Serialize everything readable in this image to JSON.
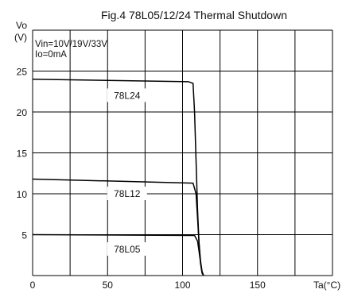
{
  "chart_data": {
    "type": "line",
    "title": "Fig.4 78L05/12/24 Thermal Shutdown",
    "xlabel": "Ta(°C)",
    "ylabel": "Vo (V)",
    "ylabel_parts": [
      "Vo",
      "(V)"
    ],
    "conditions": [
      "Vin=10V/19V/33V",
      "Io=0mA"
    ],
    "xlim": [
      0,
      200
    ],
    "ylim": [
      0,
      30
    ],
    "xticks": [
      0,
      50,
      100,
      150
    ],
    "yticks": [
      5,
      10,
      15,
      20,
      25
    ],
    "x_gridlines": [
      0,
      25,
      50,
      75,
      100,
      125,
      150,
      175,
      200
    ],
    "y_gridlines": [
      0,
      5,
      10,
      15,
      20,
      25,
      30
    ],
    "grid": true,
    "series": [
      {
        "name": "78L24",
        "label_at": {
          "x": 63,
          "y": 22
        },
        "points": [
          [
            0,
            24.0
          ],
          [
            104,
            23.7
          ],
          [
            107,
            23.5
          ],
          [
            108,
            20
          ],
          [
            109,
            14
          ],
          [
            110,
            8
          ],
          [
            111,
            4
          ],
          [
            112,
            1.5
          ],
          [
            113,
            0.3
          ],
          [
            114,
            0
          ]
        ]
      },
      {
        "name": "78L12",
        "label_at": {
          "x": 63,
          "y": 10
        },
        "points": [
          [
            0,
            11.8
          ],
          [
            107,
            11.3
          ],
          [
            109,
            10
          ],
          [
            110,
            7
          ],
          [
            111,
            4
          ],
          [
            112,
            1.8
          ],
          [
            113,
            0.5
          ],
          [
            114,
            0
          ]
        ]
      },
      {
        "name": "78L05",
        "label_at": {
          "x": 63,
          "y": 3.2
        },
        "points": [
          [
            0,
            5.0
          ],
          [
            108,
            4.9
          ],
          [
            110,
            4.2
          ],
          [
            111,
            3
          ],
          [
            112,
            1.6
          ],
          [
            113,
            0.5
          ],
          [
            114,
            0
          ]
        ]
      }
    ]
  }
}
